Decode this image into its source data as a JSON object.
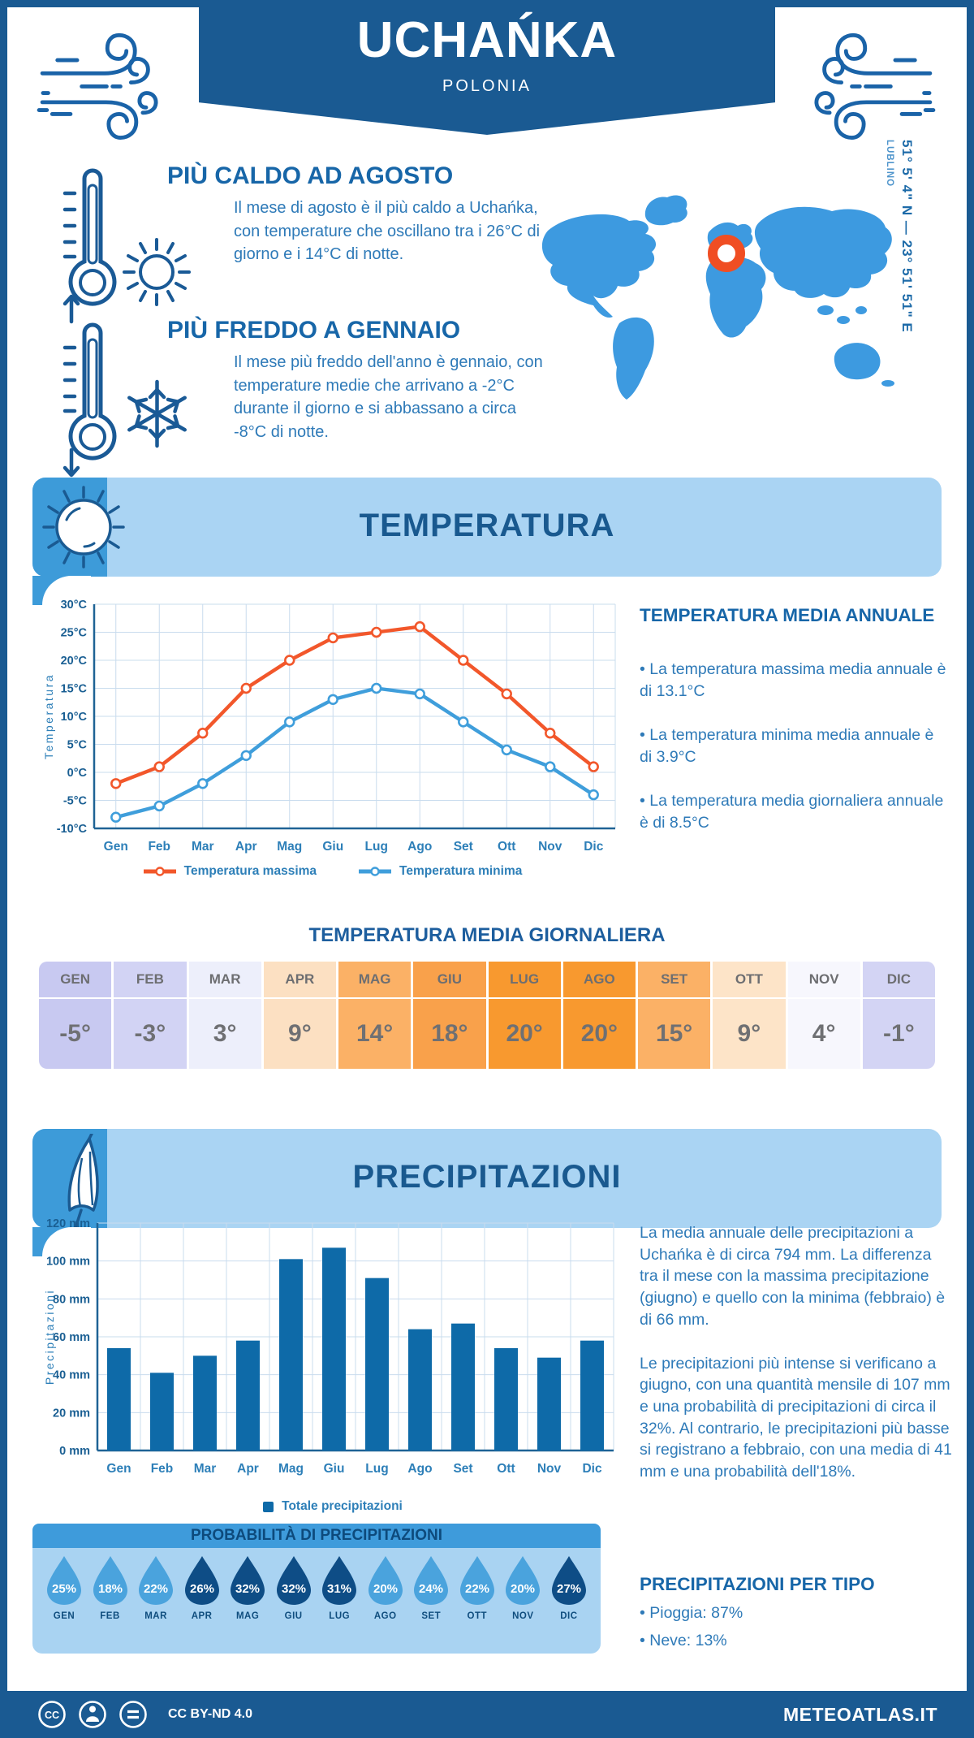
{
  "header": {
    "title": "UCHAŃKA",
    "subtitle": "POLONIA"
  },
  "location": {
    "coordinates": "51° 5' 4\" N — 23° 51' 51\" E",
    "city": "LUBLINO"
  },
  "highlights": [
    {
      "title": "PIÙ CALDO AD AGOSTO",
      "text": "Il mese di agosto è il più caldo a Uchańka, con temperature che oscillano tra i 26°C di giorno e i 14°C di notte."
    },
    {
      "title": "PIÙ FREDDO A GENNAIO",
      "text": "Il mese più freddo dell'anno è gennaio, con temperature medie che arrivano a -2°C durante il giorno e si abbassano a circa -8°C di notte."
    }
  ],
  "temperature": {
    "banner": "TEMPERATURA",
    "annual": {
      "title": "TEMPERATURA MEDIA ANNUALE",
      "bullets": [
        "La temperatura massima media annuale è di 13.1°C",
        "La temperatura minima media annuale è di 3.9°C",
        "La temperatura media giornaliera annuale è di 8.5°C"
      ]
    },
    "daily": {
      "title": "TEMPERATURA MEDIA GIORNALIERA",
      "months": [
        "GEN",
        "FEB",
        "MAR",
        "APR",
        "MAG",
        "GIU",
        "LUG",
        "AGO",
        "SET",
        "OTT",
        "NOV",
        "DIC"
      ],
      "values": [
        "-5°",
        "-3°",
        "3°",
        "9°",
        "14°",
        "18°",
        "20°",
        "20°",
        "15°",
        "9°",
        "4°",
        "-1°"
      ],
      "cell_colors": [
        "#c8c9f1",
        "#d2d3f4",
        "#edeffb",
        "#fce0c2",
        "#fbb166",
        "#f9a14b",
        "#f8992f",
        "#f8992f",
        "#fbb166",
        "#fde4c8",
        "#f7f7fd",
        "#d3d4f4"
      ]
    }
  },
  "precipitation": {
    "banner": "PRECIPITAZIONI",
    "paragraphs": [
      "La media annuale delle precipitazioni a Uchańka è di circa 794 mm. La differenza tra il mese con la massima precipitazione (giugno) e quello con la minima (febbraio) è di 66 mm.",
      "Le precipitazioni più intense si verificano a giugno, con una quantità mensile di 107 mm e una probabilità di precipitazioni di circa il 32%. Al contrario, le precipitazioni più basse si registrano a febbraio, con una media di 41 mm e una probabilità dell'18%."
    ],
    "probability": {
      "title": "PROBABILITÀ DI PRECIPITAZIONI",
      "months": [
        "GEN",
        "FEB",
        "MAR",
        "APR",
        "MAG",
        "GIU",
        "LUG",
        "AGO",
        "SET",
        "OTT",
        "NOV",
        "DIC"
      ],
      "values": [
        25,
        18,
        22,
        26,
        32,
        32,
        31,
        20,
        24,
        22,
        20,
        27
      ],
      "dark": [
        false,
        false,
        false,
        true,
        true,
        true,
        true,
        false,
        false,
        false,
        false,
        true
      ],
      "light_color": "#4aa3dd",
      "dark_color": "#0e4d86"
    },
    "per_type": {
      "title": "PRECIPITAZIONI PER TIPO",
      "items": [
        "Pioggia: 87%",
        "Neve: 13%"
      ]
    }
  },
  "chart_data": [
    {
      "type": "line",
      "title": "Temperatura",
      "x": [
        "Gen",
        "Feb",
        "Mar",
        "Apr",
        "Mag",
        "Giu",
        "Lug",
        "Ago",
        "Set",
        "Ott",
        "Nov",
        "Dic"
      ],
      "ylabel": "Temperatura",
      "unit": "°C",
      "ylim": [
        -10,
        30
      ],
      "ytick": 5,
      "grid": true,
      "legend_position": "bottom",
      "series": [
        {
          "name": "Temperatura massima",
          "color": "#f2572b",
          "values": [
            -2,
            1,
            7,
            15,
            20,
            24,
            25,
            26,
            20,
            14,
            7,
            1
          ]
        },
        {
          "name": "Temperatura minima",
          "color": "#3f9edb",
          "values": [
            -8,
            -6,
            -2,
            3,
            9,
            13,
            15,
            14,
            9,
            4,
            1,
            -4
          ]
        }
      ]
    },
    {
      "type": "bar",
      "title": "Precipitazioni",
      "x": [
        "Gen",
        "Feb",
        "Mar",
        "Apr",
        "Mag",
        "Giu",
        "Lug",
        "Ago",
        "Set",
        "Ott",
        "Nov",
        "Dic"
      ],
      "ylabel": "Precipitazioni",
      "unit": " mm",
      "ylim": [
        0,
        120
      ],
      "ytick": 20,
      "grid": true,
      "legend_position": "bottom",
      "series": [
        {
          "name": "Totale precipitazioni",
          "color": "#0e6aa8",
          "values": [
            54,
            41,
            50,
            58,
            101,
            107,
            91,
            64,
            67,
            54,
            49,
            58
          ]
        }
      ]
    }
  ],
  "footer": {
    "license": "CC BY-ND 4.0",
    "site": "METEOATLAS.IT"
  },
  "colors": {
    "navy": "#1a5a92",
    "heading": "#1766a8",
    "body_text": "#2e7ab8",
    "banner_light": "#aad4f3",
    "banner_cap": "#3d9bd9",
    "map": "#3d9ae0",
    "marker": "#f04e23",
    "table_text": "#6f7073",
    "grid": "#c9dcee",
    "axis": "#1f6395"
  }
}
